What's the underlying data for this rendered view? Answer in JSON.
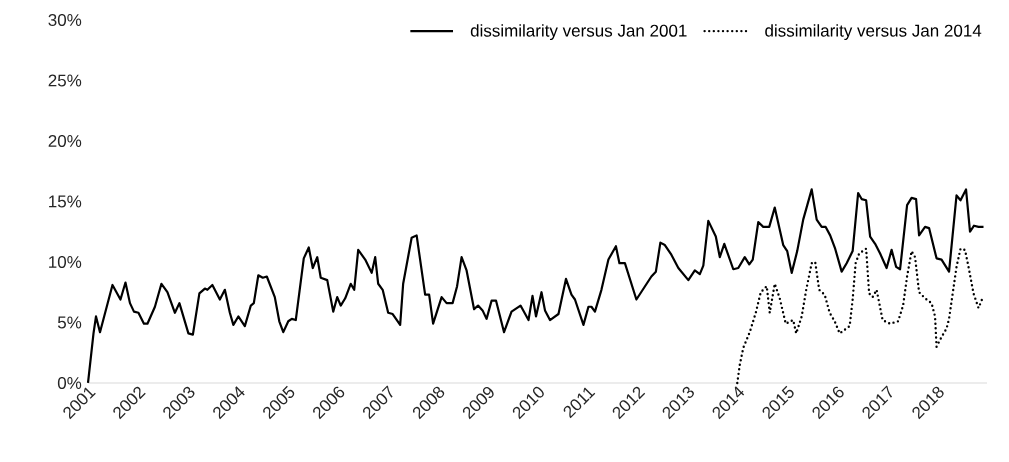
{
  "chart_data": {
    "type": "line",
    "xlim": [
      2001,
      2019
    ],
    "ylim": [
      0,
      30
    ],
    "xticks": [
      2001,
      2002,
      2003,
      2004,
      2005,
      2006,
      2007,
      2008,
      2009,
      2010,
      2011,
      2012,
      2013,
      2014,
      2015,
      2016,
      2017,
      2018
    ],
    "yticks": [
      {
        "value": 0,
        "label": "0%"
      },
      {
        "value": 5,
        "label": "5%"
      },
      {
        "value": 10,
        "label": "10%"
      },
      {
        "value": 15,
        "label": "15%"
      },
      {
        "value": 20,
        "label": "20%"
      },
      {
        "value": 25,
        "label": "25%"
      },
      {
        "value": 30,
        "label": "30%"
      }
    ],
    "legend": "top right",
    "marker": "none",
    "grid": false,
    "series": [
      {
        "name": "dissimilarity versus Jan 2001",
        "color": "#000000",
        "line_style": "solid",
        "x": [
          2001.0,
          2001.11,
          2001.16,
          2001.24,
          2001.49,
          2001.65,
          2001.75,
          2001.84,
          2001.92,
          2002.01,
          2002.12,
          2002.19,
          2002.34,
          2002.47,
          2002.59,
          2002.74,
          2002.83,
          2003.01,
          2003.1,
          2003.23,
          2003.34,
          2003.39,
          2003.49,
          2003.64,
          2003.74,
          2003.84,
          2003.91,
          2004.01,
          2004.14,
          2004.26,
          2004.32,
          2004.41,
          2004.5,
          2004.58,
          2004.74,
          2004.83,
          2004.91,
          2005.01,
          2005.08,
          2005.16,
          2005.32,
          2005.42,
          2005.5,
          2005.59,
          2005.66,
          2005.79,
          2005.91,
          2005.99,
          2006.06,
          2006.15,
          2006.26,
          2006.33,
          2006.41,
          2006.55,
          2006.68,
          2006.75,
          2006.81,
          2006.9,
          2007.01,
          2007.1,
          2007.25,
          2007.31,
          2007.48,
          2007.58,
          2007.75,
          2007.83,
          2007.91,
          2008.08,
          2008.18,
          2008.3,
          2008.39,
          2008.48,
          2008.58,
          2008.73,
          2008.81,
          2008.9,
          2008.98,
          2009.08,
          2009.17,
          2009.33,
          2009.48,
          2009.66,
          2009.82,
          2009.9,
          2009.97,
          2010.08,
          2010.15,
          2010.25,
          2010.42,
          2010.57,
          2010.68,
          2010.75,
          2010.92,
          2011.02,
          2011.08,
          2011.15,
          2011.28,
          2011.42,
          2011.57,
          2011.64,
          2011.75,
          2011.98,
          2012.28,
          2012.37,
          2012.46,
          2012.55,
          2012.68,
          2012.82,
          2013.02,
          2013.15,
          2013.25,
          2013.32,
          2013.42,
          2013.57,
          2013.65,
          2013.74,
          2013.92,
          2014.02,
          2014.15,
          2014.24,
          2014.31,
          2014.42,
          2014.52,
          2014.64,
          2014.75,
          2014.92,
          2015.0,
          2015.09,
          2015.2,
          2015.32,
          2015.49,
          2015.59,
          2015.69,
          2015.77,
          2015.86,
          2015.96,
          2016.09,
          2016.19,
          2016.31,
          2016.42,
          2016.49,
          2016.58,
          2016.66,
          2016.76,
          2016.86,
          2016.99,
          2017.09,
          2017.18,
          2017.26,
          2017.4,
          2017.49,
          2017.58,
          2017.64,
          2017.76,
          2017.84,
          2017.99,
          2018.09,
          2018.24,
          2018.39,
          2018.47,
          2018.58,
          2018.66,
          2018.74,
          2018.83,
          2018.93
        ],
        "values": [
          0,
          4.1,
          5.5,
          4.2,
          8.1,
          6.9,
          8.3,
          6.6,
          5.9,
          5.8,
          4.9,
          4.9,
          6.3,
          8.2,
          7.5,
          5.8,
          6.6,
          4.1,
          4.0,
          7.4,
          7.8,
          7.7,
          8.1,
          6.9,
          7.7,
          5.8,
          4.8,
          5.5,
          4.7,
          6.4,
          6.6,
          8.9,
          8.7,
          8.8,
          7.1,
          5.1,
          4.2,
          5.1,
          5.3,
          5.2,
          10.3,
          11.2,
          9.5,
          10.4,
          8.7,
          8.5,
          5.9,
          7.1,
          6.4,
          7.0,
          8.2,
          7.7,
          11.0,
          10.2,
          9.1,
          10.4,
          8.2,
          7.7,
          5.8,
          5.7,
          4.8,
          8.2,
          12.0,
          12.2,
          7.3,
          7.3,
          4.9,
          7.1,
          6.6,
          6.6,
          8.0,
          10.4,
          9.3,
          6.1,
          6.4,
          6.0,
          5.3,
          6.8,
          6.8,
          4.2,
          5.9,
          6.4,
          5.2,
          7.2,
          5.5,
          7.5,
          6.0,
          5.2,
          5.7,
          8.6,
          7.3,
          6.9,
          4.8,
          6.3,
          6.3,
          5.9,
          7.7,
          10.2,
          11.3,
          9.9,
          9.9,
          6.9,
          8.8,
          9.2,
          11.6,
          11.4,
          10.6,
          9.5,
          8.5,
          9.3,
          9.0,
          9.7,
          13.4,
          12.1,
          10.4,
          11.5,
          9.4,
          9.5,
          10.4,
          9.8,
          10.2,
          13.3,
          12.9,
          12.9,
          14.5,
          11.4,
          10.9,
          9.1,
          10.9,
          13.5,
          16.0,
          13.5,
          12.9,
          12.9,
          12.2,
          11.1,
          9.2,
          9.9,
          10.9,
          15.7,
          15.2,
          15.1,
          12.1,
          11.5,
          10.7,
          9.5,
          11.0,
          9.6,
          9.4,
          14.7,
          15.3,
          15.2,
          12.2,
          12.9,
          12.8,
          10.3,
          10.2,
          9.2,
          15.5,
          15.1,
          16.0,
          12.5,
          13.0,
          12.9,
          12.9
        ]
      },
      {
        "name": "dissimilarity versus Jan 2014",
        "color": "#000000",
        "line_style": "dotted",
        "x": [
          2014.0,
          2014.05,
          2014.12,
          2014.25,
          2014.37,
          2014.47,
          2014.59,
          2014.65,
          2014.75,
          2014.85,
          2014.97,
          2015.12,
          2015.18,
          2015.29,
          2015.38,
          2015.49,
          2015.56,
          2015.64,
          2015.75,
          2015.85,
          2015.95,
          2016.05,
          2016.25,
          2016.31,
          2016.37,
          2016.44,
          2016.58,
          2016.64,
          2016.71,
          2016.79,
          2016.91,
          2017.06,
          2017.22,
          2017.32,
          2017.4,
          2017.49,
          2017.56,
          2017.64,
          2017.76,
          2017.89,
          2017.96,
          2017.99,
          2018.09,
          2018.19,
          2018.24,
          2018.39,
          2018.47,
          2018.56,
          2018.63,
          2018.73,
          2018.83,
          2018.9
        ],
        "values": [
          0,
          1.5,
          2.9,
          4.2,
          5.8,
          7.5,
          8.0,
          5.8,
          8.2,
          7.0,
          4.9,
          5.2,
          4.1,
          5.5,
          7.7,
          9.9,
          10.0,
          7.7,
          7.3,
          5.8,
          5.1,
          4.1,
          4.7,
          6.9,
          9.9,
          10.7,
          11.1,
          7.4,
          7.1,
          7.7,
          5.2,
          4.9,
          5.1,
          6.4,
          8.8,
          10.9,
          10.4,
          7.5,
          7.0,
          6.6,
          5.5,
          3.0,
          3.8,
          4.5,
          5.3,
          9.6,
          11.1,
          11.0,
          9.6,
          7.4,
          6.2,
          6.9
        ]
      }
    ]
  }
}
